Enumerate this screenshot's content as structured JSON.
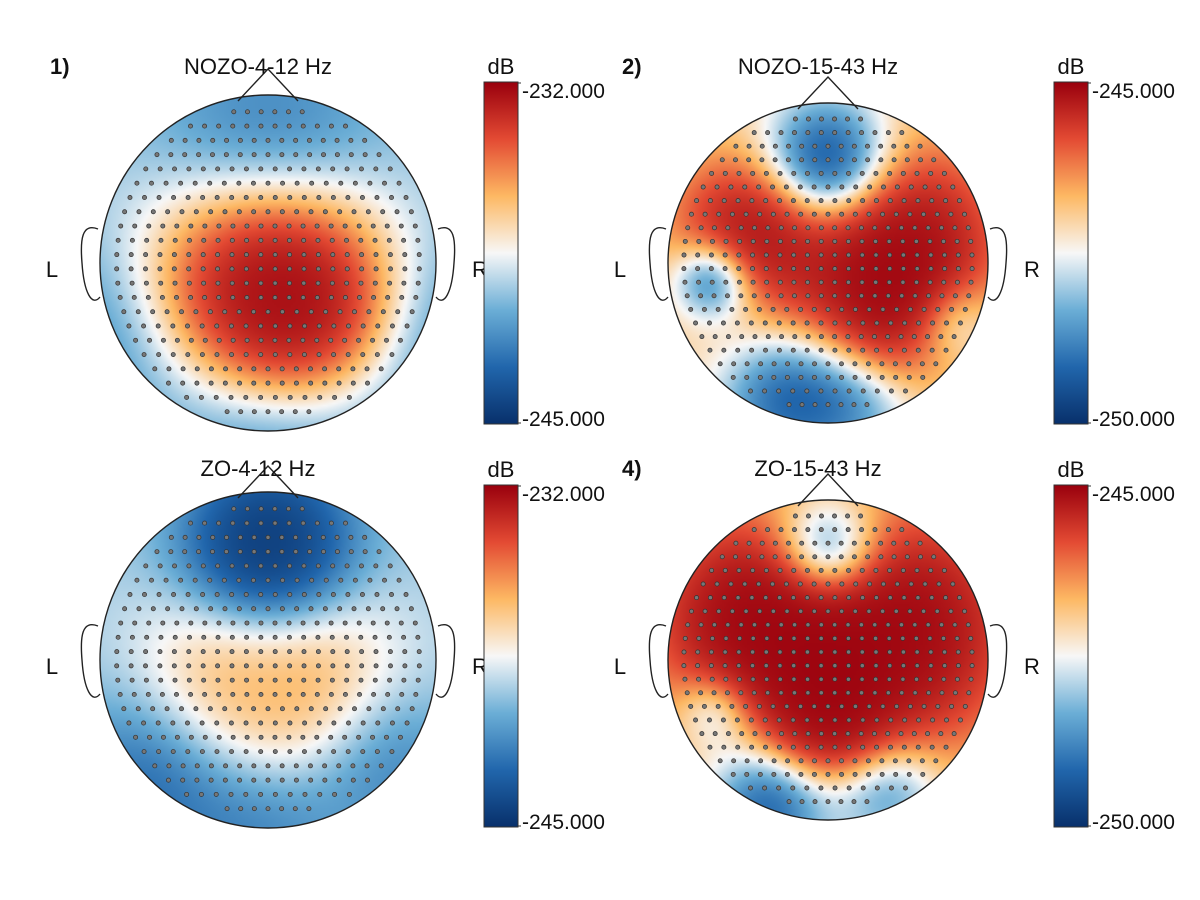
{
  "figure": {
    "colorscale": [
      "#08306b",
      "#2166ac",
      "#6baed6",
      "#f7f7f7",
      "#fdb863",
      "#e34a33",
      "#99000d"
    ],
    "head_line_color": "#222222",
    "electrode_color": "#555555"
  },
  "chart_data": [
    {
      "type": "heatmap",
      "kind": "scalp-topography",
      "panel_label": "1)",
      "title": "NOZO-4-12 Hz",
      "side_left": "L",
      "side_right": "R",
      "colorbar": {
        "unit": "dB",
        "max_label": "-232.000",
        "min_label": "-245.000",
        "range": [
          -245,
          -232
        ]
      },
      "blobs": [
        {
          "x": 0,
          "y": 0.05,
          "r": 1.2,
          "v": -0.55
        },
        {
          "x": -0.25,
          "y": 0.1,
          "r": 0.55,
          "v": 1.05
        },
        {
          "x": 0.25,
          "y": 0.1,
          "r": 0.55,
          "v": 1.05
        },
        {
          "x": 0.3,
          "y": 0.35,
          "r": 0.35,
          "v": 0.6
        },
        {
          "x": 0,
          "y": 0.2,
          "r": 0.45,
          "v": 0.8
        },
        {
          "x": 0,
          "y": -0.55,
          "r": 0.5,
          "v": -0.8
        },
        {
          "x": 0,
          "y": 0.95,
          "r": 0.45,
          "v": -0.6
        },
        {
          "x": -0.9,
          "y": 0.4,
          "r": 0.45,
          "v": -0.6
        },
        {
          "x": 0.9,
          "y": 0.4,
          "r": 0.45,
          "v": -0.6
        }
      ]
    },
    {
      "type": "heatmap",
      "kind": "scalp-topography",
      "panel_label": "2)",
      "title": "NOZO-15-43 Hz",
      "side_left": "L",
      "side_right": "R",
      "colorbar": {
        "unit": "dB",
        "max_label": "-245.000",
        "min_label": "-250.000",
        "range": [
          -250,
          -245
        ]
      },
      "blobs": [
        {
          "x": 0,
          "y": 0.1,
          "r": 1.3,
          "v": 0.35
        },
        {
          "x": -0.5,
          "y": -0.2,
          "r": 0.32,
          "v": 1.4
        },
        {
          "x": 0.5,
          "y": -0.15,
          "r": 0.4,
          "v": 1.5
        },
        {
          "x": 0.45,
          "y": 0.3,
          "r": 0.3,
          "v": 1.0
        },
        {
          "x": 0,
          "y": -0.62,
          "r": 0.28,
          "v": -1.7
        },
        {
          "x": -0.72,
          "y": 0.1,
          "r": 0.18,
          "v": -1.4
        },
        {
          "x": 0.75,
          "y": 0.35,
          "r": 0.2,
          "v": -0.9
        },
        {
          "x": -0.25,
          "y": 0.85,
          "r": 0.3,
          "v": -1.2
        },
        {
          "x": 0.2,
          "y": 0.9,
          "r": 0.25,
          "v": -0.6
        },
        {
          "x": 0,
          "y": 0.15,
          "r": 0.3,
          "v": 0.35
        }
      ]
    },
    {
      "type": "heatmap",
      "kind": "scalp-topography",
      "panel_label": "",
      "title": "ZO-4-12 Hz",
      "side_left": "L",
      "side_right": "R",
      "colorbar": {
        "unit": "dB",
        "max_label": "-232.000",
        "min_label": "-245.000",
        "range": [
          -245,
          -232
        ]
      },
      "blobs": [
        {
          "x": 0,
          "y": 0.05,
          "r": 1.2,
          "v": -0.5
        },
        {
          "x": -0.25,
          "y": 0.2,
          "r": 0.5,
          "v": 0.75
        },
        {
          "x": 0.25,
          "y": 0.2,
          "r": 0.5,
          "v": 0.75
        },
        {
          "x": 0,
          "y": -0.68,
          "r": 0.33,
          "v": -1.6
        },
        {
          "x": 0,
          "y": 0.15,
          "r": 0.25,
          "v": -0.25
        },
        {
          "x": -0.7,
          "y": 0.7,
          "r": 0.4,
          "v": -0.8
        },
        {
          "x": 0.7,
          "y": 0.6,
          "r": 0.35,
          "v": -0.6
        },
        {
          "x": 0,
          "y": 0.95,
          "r": 0.35,
          "v": -0.5
        }
      ]
    },
    {
      "type": "heatmap",
      "kind": "scalp-topography",
      "panel_label": "4)",
      "title": "ZO-15-43 Hz",
      "side_left": "L",
      "side_right": "R",
      "colorbar": {
        "unit": "dB",
        "max_label": "-245.000",
        "min_label": "-250.000",
        "range": [
          -250,
          -245
        ]
      },
      "blobs": [
        {
          "x": 0,
          "y": 0,
          "r": 1.3,
          "v": 0.55
        },
        {
          "x": -0.45,
          "y": -0.25,
          "r": 0.4,
          "v": 1.8
        },
        {
          "x": 0.45,
          "y": -0.2,
          "r": 0.45,
          "v": 1.8
        },
        {
          "x": 0,
          "y": 0.45,
          "r": 0.3,
          "v": 1.2
        },
        {
          "x": 0,
          "y": -0.65,
          "r": 0.25,
          "v": -1.7
        },
        {
          "x": -0.35,
          "y": 0.88,
          "r": 0.28,
          "v": -1.5
        },
        {
          "x": 0.35,
          "y": 0.8,
          "r": 0.25,
          "v": -1.1
        },
        {
          "x": -0.7,
          "y": 0.3,
          "r": 0.18,
          "v": -0.8
        },
        {
          "x": 0,
          "y": 0.05,
          "r": 0.22,
          "v": 0.2
        }
      ]
    }
  ]
}
